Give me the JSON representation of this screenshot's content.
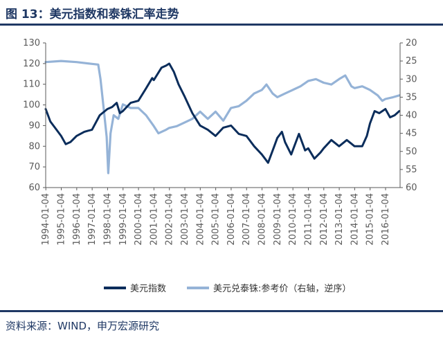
{
  "figure": {
    "title": "图 13：美元指数和泰铢汇率走势",
    "source": "资料来源：WIND，申万宏源研究"
  },
  "colors": {
    "usd_index": "#0b2d5b",
    "thb": "#95b3d7",
    "axis": "#595959",
    "brand": "#1f3864"
  },
  "chart_data": {
    "type": "line",
    "title": "图 13：美元指数和泰铢汇率走势",
    "x_ticks": [
      "1994-01-04",
      "1995-01-04",
      "1996-01-04",
      "1997-01-04",
      "1998-01-04",
      "1999-01-04",
      "2000-01-04",
      "2001-01-04",
      "2002-01-04",
      "2003-01-04",
      "2004-01-04",
      "2005-01-04",
      "2006-01-04",
      "2007-01-04",
      "2008-01-04",
      "2009-01-04",
      "2010-01-04",
      "2011-01-04",
      "2012-01-04",
      "2013-01-04",
      "2014-01-04",
      "2015-01-04",
      "2016-01-04"
    ],
    "y_left": {
      "min": 60,
      "max": 130,
      "ticks": [
        60,
        70,
        80,
        90,
        100,
        110,
        120,
        130
      ]
    },
    "y_right": {
      "min": 20,
      "max": 60,
      "inverted": true,
      "ticks": [
        20,
        25,
        30,
        35,
        40,
        45,
        50,
        55,
        60
      ]
    },
    "legend": [
      "美元指数",
      "美元兑泰铢:参考价（右轴，逆序）"
    ],
    "series": [
      {
        "name": "美元指数",
        "axis": "left",
        "points": [
          [
            1994.0,
            98
          ],
          [
            1994.3,
            92
          ],
          [
            1994.7,
            88
          ],
          [
            1995.0,
            85
          ],
          [
            1995.3,
            81
          ],
          [
            1995.6,
            82
          ],
          [
            1996.0,
            85
          ],
          [
            1996.5,
            87
          ],
          [
            1997.0,
            88
          ],
          [
            1997.5,
            95
          ],
          [
            1998.0,
            98
          ],
          [
            1998.3,
            99
          ],
          [
            1998.6,
            101
          ],
          [
            1998.8,
            96
          ],
          [
            1999.0,
            97
          ],
          [
            1999.5,
            101
          ],
          [
            2000.0,
            102
          ],
          [
            2000.5,
            108
          ],
          [
            2000.9,
            113
          ],
          [
            2001.0,
            112
          ],
          [
            2001.5,
            118
          ],
          [
            2001.8,
            119
          ],
          [
            2002.0,
            120
          ],
          [
            2002.3,
            116
          ],
          [
            2002.6,
            110
          ],
          [
            2003.0,
            104
          ],
          [
            2003.5,
            96
          ],
          [
            2004.0,
            90
          ],
          [
            2004.5,
            88
          ],
          [
            2005.0,
            85
          ],
          [
            2005.5,
            89
          ],
          [
            2006.0,
            90
          ],
          [
            2006.5,
            86
          ],
          [
            2007.0,
            85
          ],
          [
            2007.5,
            80
          ],
          [
            2008.0,
            76
          ],
          [
            2008.4,
            72
          ],
          [
            2008.8,
            80
          ],
          [
            2009.0,
            84
          ],
          [
            2009.3,
            87
          ],
          [
            2009.5,
            82
          ],
          [
            2009.9,
            76
          ],
          [
            2010.0,
            78
          ],
          [
            2010.4,
            86
          ],
          [
            2010.8,
            78
          ],
          [
            2011.0,
            79
          ],
          [
            2011.4,
            74
          ],
          [
            2011.8,
            77
          ],
          [
            2012.0,
            79
          ],
          [
            2012.5,
            83
          ],
          [
            2013.0,
            80
          ],
          [
            2013.5,
            83
          ],
          [
            2014.0,
            80
          ],
          [
            2014.5,
            80
          ],
          [
            2014.8,
            85
          ],
          [
            2015.0,
            91
          ],
          [
            2015.3,
            97
          ],
          [
            2015.6,
            96
          ],
          [
            2016.0,
            98
          ],
          [
            2016.3,
            94
          ],
          [
            2016.6,
            95
          ],
          [
            2016.9,
            97
          ]
        ]
      },
      {
        "name": "美元兑泰铢:参考价（右轴，逆序）",
        "axis": "right",
        "points": [
          [
            1994.0,
            25.3
          ],
          [
            1995.0,
            25.0
          ],
          [
            1996.0,
            25.3
          ],
          [
            1997.0,
            25.8
          ],
          [
            1997.4,
            26.0
          ],
          [
            1997.55,
            30.0
          ],
          [
            1997.75,
            38.0
          ],
          [
            1997.95,
            46.0
          ],
          [
            1998.05,
            56.0
          ],
          [
            1998.2,
            45.0
          ],
          [
            1998.4,
            40.0
          ],
          [
            1998.7,
            41.0
          ],
          [
            1999.0,
            37.0
          ],
          [
            1999.5,
            38.0
          ],
          [
            2000.0,
            38.0
          ],
          [
            2000.5,
            40.0
          ],
          [
            2001.0,
            43.0
          ],
          [
            2001.3,
            45.0
          ],
          [
            2001.8,
            44.0
          ],
          [
            2002.0,
            43.5
          ],
          [
            2002.5,
            43.0
          ],
          [
            2003.0,
            42.0
          ],
          [
            2003.5,
            41.0
          ],
          [
            2004.0,
            39.0
          ],
          [
            2004.5,
            41.0
          ],
          [
            2005.0,
            39.0
          ],
          [
            2005.5,
            41.5
          ],
          [
            2006.0,
            38.0
          ],
          [
            2006.5,
            37.5
          ],
          [
            2007.0,
            36.0
          ],
          [
            2007.5,
            34.0
          ],
          [
            2008.0,
            33.0
          ],
          [
            2008.3,
            31.5
          ],
          [
            2008.7,
            34.0
          ],
          [
            2009.0,
            35.0
          ],
          [
            2009.5,
            34.0
          ],
          [
            2010.0,
            33.0
          ],
          [
            2010.5,
            32.0
          ],
          [
            2011.0,
            30.5
          ],
          [
            2011.5,
            30.0
          ],
          [
            2012.0,
            31.0
          ],
          [
            2012.5,
            31.5
          ],
          [
            2013.0,
            30.0
          ],
          [
            2013.4,
            29.0
          ],
          [
            2013.8,
            32.0
          ],
          [
            2014.0,
            32.5
          ],
          [
            2014.5,
            32.0
          ],
          [
            2015.0,
            33.0
          ],
          [
            2015.5,
            34.5
          ],
          [
            2015.8,
            36.0
          ],
          [
            2016.0,
            35.5
          ],
          [
            2016.5,
            35.0
          ],
          [
            2016.9,
            34.5
          ]
        ]
      }
    ]
  }
}
